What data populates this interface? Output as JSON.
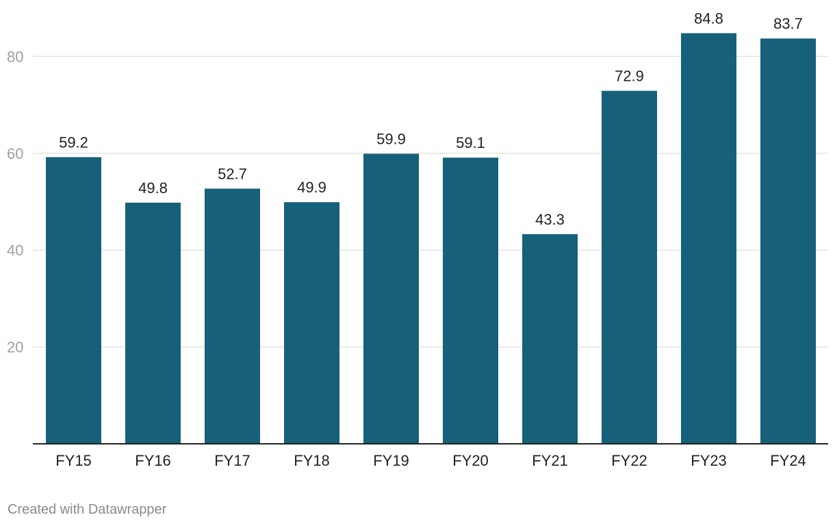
{
  "chart_data": {
    "type": "bar",
    "categories": [
      "FY15",
      "FY16",
      "FY17",
      "FY18",
      "FY19",
      "FY20",
      "FY21",
      "FY22",
      "FY23",
      "FY24"
    ],
    "values": [
      59.2,
      49.8,
      52.7,
      49.9,
      59.9,
      59.1,
      43.3,
      72.9,
      84.8,
      83.7
    ],
    "data_labels": [
      "59.2",
      "49.8",
      "52.7",
      "49.9",
      "59.9",
      "59.1",
      "43.3",
      "72.9",
      "84.8",
      "83.7"
    ],
    "y_ticks": [
      20,
      40,
      60,
      80
    ],
    "ylim": [
      0,
      90
    ],
    "title": "",
    "xlabel": "",
    "ylabel": "",
    "grid": true,
    "bar_color": "#17607a"
  },
  "footer": {
    "credit": "Created with Datawrapper"
  }
}
